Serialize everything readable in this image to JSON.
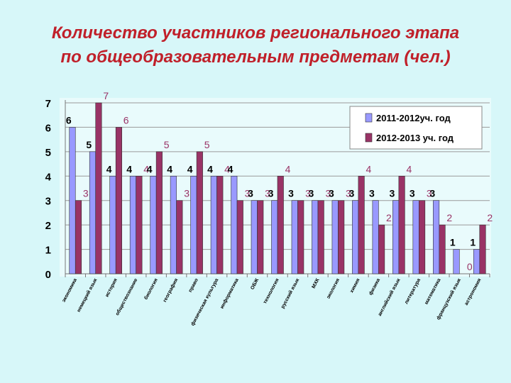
{
  "slide": {
    "title_line1": "Количество участников регионального этапа",
    "title_line2": "по общеобразовательным предметам (чел.)"
  },
  "chart_data": {
    "type": "bar",
    "title": "Количество участников регионального этапа по общеобразовательным предметам (чел.)",
    "categories": [
      "экономика",
      "немецкий язык",
      "история",
      "обществознание",
      "биология",
      "география",
      "право",
      "физическая культура",
      "информатика",
      "ОБЖ",
      "технология",
      "русский язык",
      "МХК",
      "экология",
      "химия",
      "физика",
      "английский язык",
      "литература",
      "математика",
      "французский язык",
      "астрономия"
    ],
    "series": [
      {
        "name": "2011-2012уч. год",
        "color": "#9999ff",
        "values": [
          6,
          5,
          4,
          4,
          4,
          4,
          4,
          4,
          4,
          3,
          3,
          3,
          3,
          3,
          3,
          3,
          3,
          3,
          3,
          1,
          1
        ]
      },
      {
        "name": "2012-2013 уч. год",
        "color": "#993366",
        "values": [
          3,
          7,
          6,
          4,
          5,
          3,
          5,
          4,
          3,
          3,
          4,
          3,
          3,
          3,
          4,
          2,
          4,
          3,
          2,
          0,
          2
        ]
      }
    ],
    "ylim": [
      0,
      7
    ],
    "yticks": [
      0,
      1,
      2,
      3,
      4,
      5,
      6,
      7
    ],
    "grid": true,
    "legend_position": "top-right",
    "data_label_colors": {
      "2011-2012уч. год": "#000000",
      "2012-2013 уч. год": "#993366"
    }
  }
}
